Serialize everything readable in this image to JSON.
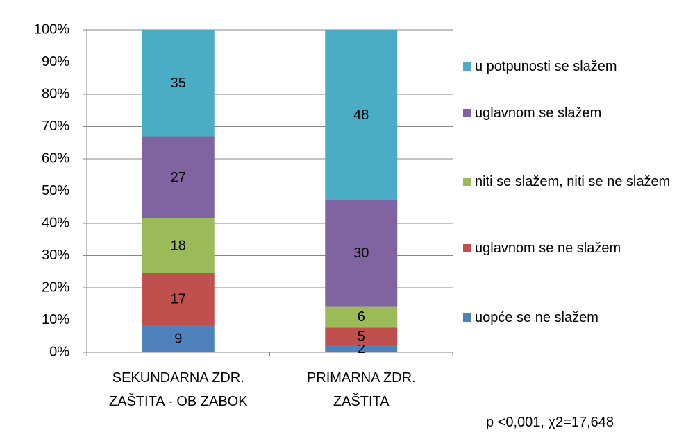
{
  "chart_data": {
    "type": "bar",
    "stacking": "percent",
    "categories": [
      "SEKUNDARNA ZDR.\nZAŠTITA - OB ZABOK",
      "PRIMARNA ZDR.\nZAŠTITA"
    ],
    "series": [
      {
        "name": "uopće se ne slažem",
        "color": "#4f81bd",
        "values": [
          9,
          2
        ]
      },
      {
        "name": "uglavnom se ne slažem",
        "color": "#c0504d",
        "values": [
          17,
          5
        ]
      },
      {
        "name": "niti se slažem, niti se ne slažem",
        "color": "#9bbb59",
        "values": [
          18,
          6
        ]
      },
      {
        "name": "uglavnom se slažem",
        "color": "#8064a2",
        "values": [
          27,
          30
        ]
      },
      {
        "name": "u potpunosti se slažem",
        "color": "#4bacc6",
        "values": [
          35,
          48
        ]
      }
    ],
    "ylim": [
      0,
      100
    ],
    "yticks": [
      {
        "value": 0,
        "label": "0%"
      },
      {
        "value": 10,
        "label": "10%"
      },
      {
        "value": 20,
        "label": "20%"
      },
      {
        "value": 30,
        "label": "30%"
      },
      {
        "value": 40,
        "label": "40%"
      },
      {
        "value": 50,
        "label": "50%"
      },
      {
        "value": 60,
        "label": "60%"
      },
      {
        "value": 70,
        "label": "70%"
      },
      {
        "value": 80,
        "label": "80%"
      },
      {
        "value": 90,
        "label": "90%"
      },
      {
        "value": 100,
        "label": "100%"
      }
    ],
    "grid": true,
    "legend": "right",
    "annotation": "p  <0,001, χ2=17,648"
  }
}
